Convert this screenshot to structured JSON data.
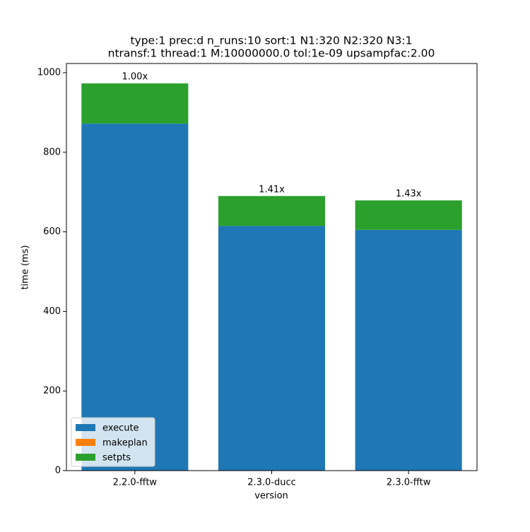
{
  "chart_data": {
    "type": "stacked-bar",
    "title": [
      "type:1 prec:d n_runs:10 sort:1 N1:320 N2:320 N3:1",
      "ntransf:1 thread:1 M:10000000.0 tol:1e-09 upsampfac:2.00"
    ],
    "xlabel": "version",
    "ylabel": "time (ms)",
    "categories": [
      "2.2.0-fftw",
      "2.3.0-ducc",
      "2.3.0-fftw"
    ],
    "series": [
      {
        "name": "execute",
        "color": "#1f77b4",
        "values": [
          872,
          615,
          605
        ]
      },
      {
        "name": "makeplan",
        "color": "#ff7f0e",
        "values": [
          0,
          0,
          0
        ]
      },
      {
        "name": "setpts",
        "color": "#2ca02c",
        "values": [
          101,
          75,
          74
        ]
      }
    ],
    "bar_labels": [
      "1.00x",
      "1.41x",
      "1.43x"
    ],
    "ylim": [
      0,
      1023
    ],
    "yticks": [
      0,
      200,
      400,
      600,
      800,
      1000
    ],
    "legend": "lower left"
  }
}
